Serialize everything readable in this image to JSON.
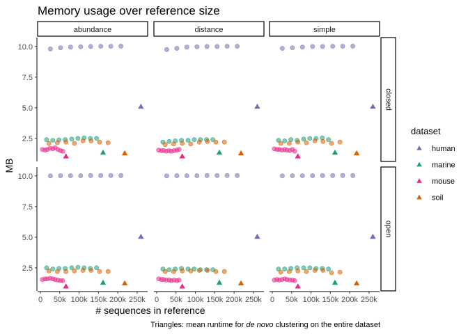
{
  "chart_data": {
    "type": "scatter",
    "title": "Memory usage over reference size",
    "xlabel": "# sequences in reference",
    "ylabel": "MB",
    "caption": {
      "prefix": "Triangles: mean runtime for ",
      "italic": "de novo",
      "suffix": " clustering on the entire dataset"
    },
    "x_ticks": [
      {
        "value": 0,
        "label": "0"
      },
      {
        "value": 50000,
        "label": "50k"
      },
      {
        "value": 100000,
        "label": "100k"
      },
      {
        "value": 150000,
        "label": "150k"
      },
      {
        "value": 200000,
        "label": "200k"
      },
      {
        "value": 250000,
        "label": "250k"
      }
    ],
    "y_ticks": [
      {
        "value": 2.5,
        "label": "2.5"
      },
      {
        "value": 5.0,
        "label": "5.0"
      },
      {
        "value": 7.5,
        "label": "7.5"
      },
      {
        "value": 10.0,
        "label": "10.0"
      }
    ],
    "xlim": [
      0,
      270000
    ],
    "ylim": [
      0.85,
      10.5
    ],
    "columns": [
      "abundance",
      "distance",
      "simple"
    ],
    "rows": [
      "closed",
      "open"
    ],
    "legend": {
      "title": "dataset",
      "position": "right",
      "entries": [
        {
          "name": "human",
          "color": "#7570b3"
        },
        {
          "name": "marine",
          "color": "#1b9e77"
        },
        {
          "name": "mouse",
          "color": "#e7298a"
        },
        {
          "name": "soil",
          "color": "#d95f02"
        }
      ]
    },
    "point_style": {
      "circle": "subsample",
      "triangle": "entire dataset"
    },
    "triangles": [
      {
        "dataset": "human",
        "x": 260000,
        "closed": 5.1,
        "open": 5.05
      },
      {
        "dataset": "marine",
        "x": 162000,
        "closed": 1.35,
        "open": 1.3
      },
      {
        "dataset": "mouse",
        "x": 66000,
        "closed": 1.05,
        "open": 1.0
      },
      {
        "dataset": "soil",
        "x": 218000,
        "closed": 1.3,
        "open": 1.25
      }
    ],
    "panels": [
      {
        "column": "abundance",
        "row": "closed",
        "series": [
          {
            "dataset": "human",
            "x": [
              26000,
              52000,
              78000,
              104000,
              130000,
              156000,
              182000,
              208000
            ],
            "y": [
              9.8,
              9.9,
              9.95,
              9.98,
              10.0,
              10.02,
              10.02,
              10.03
            ]
          },
          {
            "dataset": "marine",
            "x": [
              16000,
              32000,
              48000,
              64000,
              81000,
              97000,
              113000,
              129000,
              145000
            ],
            "y": [
              2.4,
              2.35,
              2.38,
              2.4,
              2.45,
              2.5,
              2.55,
              2.5,
              2.5
            ]
          },
          {
            "dataset": "mouse",
            "x": [
              5000,
              12000,
              18000,
              25000,
              32000,
              38000,
              45000,
              52000,
              58000
            ],
            "y": [
              1.6,
              1.55,
              1.6,
              1.7,
              1.65,
              1.75,
              1.6,
              1.5,
              1.45
            ]
          },
          {
            "dataset": "soil",
            "x": [
              22000,
              44000,
              66000,
              88000,
              110000,
              131000,
              153000,
              175000
            ],
            "y": [
              2.1,
              2.15,
              2.2,
              2.1,
              2.3,
              2.3,
              2.2,
              2.15
            ]
          }
        ]
      },
      {
        "column": "distance",
        "row": "closed",
        "series": [
          {
            "dataset": "human",
            "x": [
              26000,
              52000,
              78000,
              104000,
              130000,
              156000,
              182000,
              208000
            ],
            "y": [
              9.75,
              9.85,
              9.95,
              9.98,
              10.0,
              10.0,
              10.02,
              10.02
            ]
          },
          {
            "dataset": "marine",
            "x": [
              16000,
              32000,
              48000,
              64000,
              81000,
              97000,
              113000,
              129000,
              145000
            ],
            "y": [
              2.2,
              2.25,
              2.3,
              2.35,
              2.35,
              2.4,
              2.4,
              2.4,
              2.4
            ]
          },
          {
            "dataset": "mouse",
            "x": [
              5000,
              12000,
              18000,
              25000,
              32000,
              38000,
              45000,
              52000,
              58000
            ],
            "y": [
              1.55,
              1.5,
              1.5,
              1.45,
              1.5,
              1.45,
              1.5,
              1.55,
              1.6
            ]
          },
          {
            "dataset": "soil",
            "x": [
              22000,
              44000,
              66000,
              88000,
              110000,
              131000,
              153000,
              175000
            ],
            "y": [
              2.0,
              2.05,
              2.1,
              2.05,
              2.2,
              2.25,
              2.2,
              2.2
            ]
          }
        ]
      },
      {
        "column": "simple",
        "row": "closed",
        "series": [
          {
            "dataset": "human",
            "x": [
              26000,
              52000,
              78000,
              104000,
              130000,
              156000,
              182000,
              208000
            ],
            "y": [
              9.85,
              9.9,
              9.95,
              10.0,
              10.0,
              10.02,
              10.02,
              10.03
            ]
          },
          {
            "dataset": "marine",
            "x": [
              16000,
              32000,
              48000,
              64000,
              81000,
              97000,
              113000,
              129000,
              145000
            ],
            "y": [
              2.35,
              2.3,
              2.4,
              2.35,
              2.45,
              2.5,
              2.5,
              2.55,
              2.4
            ]
          },
          {
            "dataset": "mouse",
            "x": [
              5000,
              12000,
              18000,
              25000,
              32000,
              38000,
              45000,
              52000,
              58000
            ],
            "y": [
              1.65,
              1.6,
              1.6,
              1.55,
              1.6,
              1.55,
              1.5,
              1.6,
              1.45
            ]
          },
          {
            "dataset": "soil",
            "x": [
              22000,
              44000,
              66000,
              88000,
              110000,
              131000,
              153000,
              175000
            ],
            "y": [
              2.1,
              2.1,
              2.2,
              2.15,
              2.3,
              2.25,
              2.1,
              2.2
            ]
          }
        ]
      },
      {
        "column": "abundance",
        "row": "open",
        "series": [
          {
            "dataset": "human",
            "x": [
              26000,
              52000,
              78000,
              104000,
              130000,
              156000,
              182000,
              208000
            ],
            "y": [
              10.0,
              10.02,
              10.02,
              10.02,
              10.03,
              10.03,
              10.03,
              10.03
            ]
          },
          {
            "dataset": "marine",
            "x": [
              16000,
              32000,
              48000,
              64000,
              81000,
              97000,
              113000,
              129000,
              145000
            ],
            "y": [
              2.5,
              2.4,
              2.45,
              2.45,
              2.5,
              2.55,
              2.5,
              2.45,
              2.5
            ]
          },
          {
            "dataset": "mouse",
            "x": [
              5000,
              12000,
              18000,
              25000,
              32000,
              38000,
              45000,
              52000,
              58000
            ],
            "y": [
              1.55,
              1.6,
              1.6,
              1.65,
              1.6,
              1.55,
              1.5,
              1.45,
              1.45
            ]
          },
          {
            "dataset": "soil",
            "x": [
              22000,
              44000,
              66000,
              88000,
              110000,
              131000,
              153000,
              175000
            ],
            "y": [
              2.25,
              2.2,
              2.2,
              2.25,
              2.3,
              2.3,
              2.2,
              2.2
            ]
          }
        ]
      },
      {
        "column": "distance",
        "row": "open",
        "series": [
          {
            "dataset": "human",
            "x": [
              26000,
              52000,
              78000,
              104000,
              130000,
              156000,
              182000,
              208000
            ],
            "y": [
              10.0,
              10.02,
              10.02,
              10.02,
              10.03,
              10.03,
              10.03,
              10.03
            ]
          },
          {
            "dataset": "marine",
            "x": [
              16000,
              32000,
              48000,
              64000,
              81000,
              97000,
              113000,
              129000,
              145000
            ],
            "y": [
              2.4,
              2.35,
              2.4,
              2.45,
              2.4,
              2.4,
              2.35,
              2.35,
              2.35
            ]
          },
          {
            "dataset": "mouse",
            "x": [
              5000,
              12000,
              18000,
              25000,
              32000,
              38000,
              45000,
              52000,
              58000
            ],
            "y": [
              1.6,
              1.55,
              1.55,
              1.5,
              1.5,
              1.45,
              1.5,
              1.45,
              1.5
            ]
          },
          {
            "dataset": "soil",
            "x": [
              22000,
              44000,
              66000,
              88000,
              110000,
              131000,
              153000,
              175000
            ],
            "y": [
              2.2,
              2.2,
              2.25,
              2.25,
              2.3,
              2.3,
              2.2,
              2.2
            ]
          }
        ]
      },
      {
        "column": "simple",
        "row": "open",
        "series": [
          {
            "dataset": "human",
            "x": [
              26000,
              52000,
              78000,
              104000,
              130000,
              156000,
              182000,
              208000
            ],
            "y": [
              10.0,
              10.02,
              10.02,
              10.02,
              10.03,
              10.03,
              10.03,
              10.03
            ]
          },
          {
            "dataset": "marine",
            "x": [
              16000,
              32000,
              48000,
              64000,
              81000,
              97000,
              113000,
              129000,
              145000
            ],
            "y": [
              2.4,
              2.4,
              2.45,
              2.5,
              2.5,
              2.5,
              2.45,
              2.45,
              2.4
            ]
          },
          {
            "dataset": "mouse",
            "x": [
              5000,
              12000,
              18000,
              25000,
              32000,
              38000,
              45000,
              52000,
              58000
            ],
            "y": [
              1.5,
              1.55,
              1.5,
              1.55,
              1.6,
              1.55,
              1.5,
              1.5,
              1.45
            ]
          },
          {
            "dataset": "soil",
            "x": [
              22000,
              44000,
              66000,
              88000,
              110000,
              131000,
              153000,
              175000
            ],
            "y": [
              2.15,
              2.2,
              2.25,
              2.2,
              2.3,
              2.3,
              2.1,
              2.15
            ]
          }
        ]
      }
    ]
  }
}
